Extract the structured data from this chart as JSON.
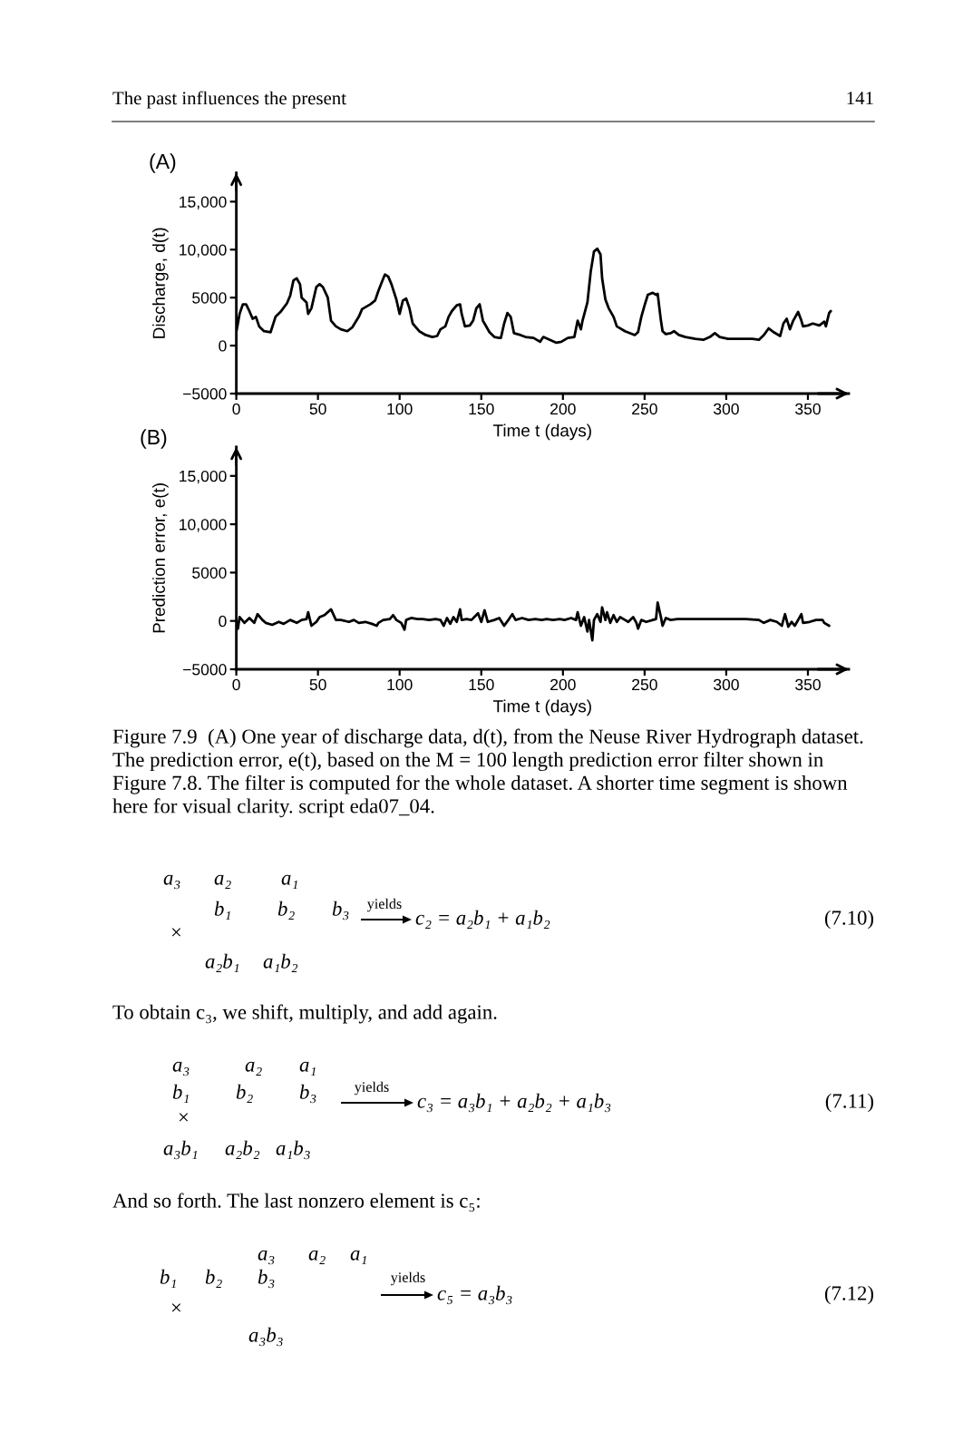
{
  "chart_data": [
    {
      "type": "line",
      "title": "(A)",
      "xlabel": "Time t (days)",
      "ylabel": "Discharge, d(t)",
      "x": [
        0,
        2,
        4,
        6,
        8,
        10,
        12,
        14,
        17,
        21,
        24,
        27,
        31,
        33,
        35,
        37,
        39,
        40,
        43,
        44,
        46,
        49,
        51,
        53,
        56,
        58,
        61,
        64,
        68,
        71,
        75,
        77,
        82,
        85,
        87,
        90,
        91,
        93,
        95,
        98,
        100,
        102,
        104,
        106,
        108,
        112,
        116,
        120,
        123,
        125,
        128,
        130,
        132,
        135,
        137,
        138,
        140,
        143,
        145,
        147,
        149,
        151,
        152,
        155,
        158,
        161,
        162,
        164,
        166,
        168,
        170,
        174,
        177,
        182,
        186,
        188,
        192,
        196,
        199,
        203,
        207,
        209,
        211,
        212,
        215,
        217,
        219,
        221,
        223,
        224,
        226,
        228,
        231,
        233,
        238,
        244,
        246,
        248,
        250,
        252,
        255,
        257,
        258,
        260,
        261,
        263,
        266,
        268,
        271,
        275,
        281,
        286,
        290,
        293,
        296,
        301,
        309,
        316,
        320,
        323,
        326,
        329,
        333,
        335,
        337,
        339,
        341,
        344,
        346,
        347,
        350,
        353,
        357,
        360,
        361,
        363,
        364
      ],
      "series": [
        {
          "color": "#000000",
          "values": [
            1400,
            3300,
            4300,
            4300,
            3600,
            2800,
            3000,
            2000,
            1500,
            1400,
            3000,
            3500,
            4400,
            5200,
            6800,
            7000,
            6400,
            5000,
            4500,
            3300,
            3900,
            6100,
            6400,
            6100,
            5000,
            2600,
            2000,
            1700,
            1500,
            1900,
            3000,
            3800,
            4300,
            4700,
            5700,
            7000,
            7400,
            7200,
            6400,
            4800,
            3300,
            4700,
            4900,
            3900,
            2300,
            1500,
            1100,
            900,
            1000,
            1700,
            2000,
            3000,
            3600,
            4200,
            4300,
            3300,
            2000,
            2100,
            2600,
            3900,
            4300,
            2600,
            2300,
            1400,
            900,
            800,
            800,
            2300,
            3400,
            3000,
            1300,
            1100,
            900,
            800,
            400,
            900,
            600,
            300,
            400,
            800,
            900,
            2600,
            1700,
            2600,
            4500,
            7700,
            9800,
            10100,
            9500,
            7000,
            4800,
            3900,
            3000,
            2000,
            1500,
            1100,
            1400,
            3000,
            4200,
            5300,
            5500,
            5300,
            5400,
            2600,
            1500,
            1200,
            1300,
            1500,
            1100,
            900,
            700,
            600,
            900,
            1300,
            900,
            700,
            700,
            700,
            600,
            1100,
            1800,
            1400,
            1000,
            2300,
            2800,
            1700,
            2600,
            3500,
            2600,
            2000,
            2100,
            2300,
            2100,
            2500,
            2000,
            3400,
            3600
          ]
        }
      ],
      "xlim": [
        0,
        375
      ],
      "ylim": [
        -5000,
        18000
      ],
      "xticks": [
        0,
        50,
        100,
        150,
        200,
        250,
        300,
        350
      ],
      "yticks": [
        {
          "value": -5000,
          "label": "−5000"
        },
        0,
        5000,
        {
          "value": 10000,
          "label": "10,000"
        },
        {
          "value": 15000,
          "label": "15,000"
        }
      ],
      "annotations": [
        "The past influences the present",
        "141"
      ]
    },
    {
      "type": "line",
      "title": "(B)",
      "xlabel": "Time t (days)",
      "ylabel": "Prediction error, e(t)",
      "x": [
        0,
        1,
        2,
        5,
        8,
        11,
        13,
        16,
        18,
        22,
        26,
        29,
        33,
        37,
        40,
        43,
        44,
        46,
        49,
        51,
        54,
        58,
        61,
        64,
        69,
        72,
        75,
        79,
        83,
        86,
        87,
        90,
        94,
        96,
        98,
        101,
        103,
        104,
        107,
        111,
        114,
        118,
        122,
        125,
        127,
        129,
        131,
        133,
        135,
        137,
        138,
        141,
        144,
        148,
        150,
        152,
        154,
        158,
        161,
        164,
        167,
        169,
        171,
        175,
        179,
        183,
        187,
        190,
        194,
        198,
        201,
        205,
        208,
        209,
        211,
        213,
        215,
        216,
        218,
        219,
        221,
        223,
        224,
        226,
        227,
        229,
        231,
        233,
        235,
        238,
        240,
        243,
        245,
        246,
        248,
        251,
        255,
        257,
        258,
        260,
        261,
        263,
        266,
        270,
        275,
        283,
        290,
        297,
        305,
        312,
        320,
        323,
        327,
        331,
        334,
        336,
        338,
        340,
        342,
        344,
        346,
        347,
        351,
        355,
        359,
        360,
        363
      ],
      "series": [
        {
          "color": "#000000",
          "values": [
            0,
            -800,
            400,
            -200,
            300,
            -200,
            700,
            100,
            -200,
            -400,
            -100,
            -300,
            100,
            -200,
            100,
            200,
            900,
            -500,
            -100,
            400,
            600,
            1200,
            100,
            100,
            -100,
            100,
            -200,
            -100,
            -300,
            -500,
            -200,
            100,
            200,
            600,
            100,
            -200,
            -900,
            100,
            300,
            200,
            200,
            100,
            200,
            100,
            -500,
            300,
            -300,
            400,
            -100,
            1200,
            100,
            200,
            100,
            800,
            -100,
            1100,
            -100,
            100,
            300,
            -500,
            200,
            700,
            100,
            300,
            100,
            200,
            100,
            200,
            100,
            200,
            100,
            300,
            100,
            900,
            -500,
            400,
            -1100,
            100,
            -2000,
            100,
            700,
            -100,
            1400,
            100,
            900,
            -200,
            600,
            -100,
            400,
            100,
            -100,
            400,
            -200,
            -800,
            100,
            -100,
            100,
            200,
            1900,
            400,
            -500,
            300,
            100,
            200,
            200,
            200,
            200,
            200,
            200,
            200,
            100,
            -200,
            100,
            -100,
            -500,
            700,
            -600,
            -100,
            -500,
            100,
            700,
            -200,
            -100,
            100,
            100,
            -200,
            -500
          ]
        }
      ],
      "xlim": [
        0,
        375
      ],
      "ylim": [
        -5000,
        18000
      ],
      "xticks": [
        0,
        50,
        100,
        150,
        200,
        250,
        300,
        350
      ],
      "yticks": [
        {
          "value": -5000,
          "label": "−5000"
        },
        0,
        5000,
        {
          "value": 10000,
          "label": "10,000"
        },
        {
          "value": 15000,
          "label": "15,000"
        }
      ],
      "annotations": [
        "Figure 7.9  (A) One year of discharge data, d(t), from the Neuse River Hydrograph dataset.",
        "The prediction error, e(t), based on the M = 100 length prediction error filter shown in",
        "Figure 7.8. The filter is computed for the whole dataset. A shorter time segment is shown",
        "here for visual clarity. script eda07_04.",
        "a₃",
        "a₂",
        "a₁",
        "b₁",
        "b₂",
        "b₃",
        "yields",
        "c₂ = a₂b₁ + a₁b₂",
        "(7.10)",
        "×",
        "a₂b₁",
        "a₁b₂",
        "To obtain c₃, we shift, multiply, and add again.",
        "a₃",
        "a₂",
        "a₁",
        "b₁",
        "b₂",
        "b₃",
        "yields",
        "c₃ = a₃b₁ + a₂b₂ + a₁b₃",
        "(7.11)",
        "×",
        "a₃b₁",
        "a₂b₂",
        "a₁b₃",
        "And so forth. The last nonzero element is c₅:",
        "a₃",
        "a₂",
        "a₁",
        "b₁",
        "b₂",
        "b₃",
        "yields",
        "c₅ = a₃b₃",
        "(7.12)",
        "×",
        "a₃b₃"
      ]
    }
  ]
}
